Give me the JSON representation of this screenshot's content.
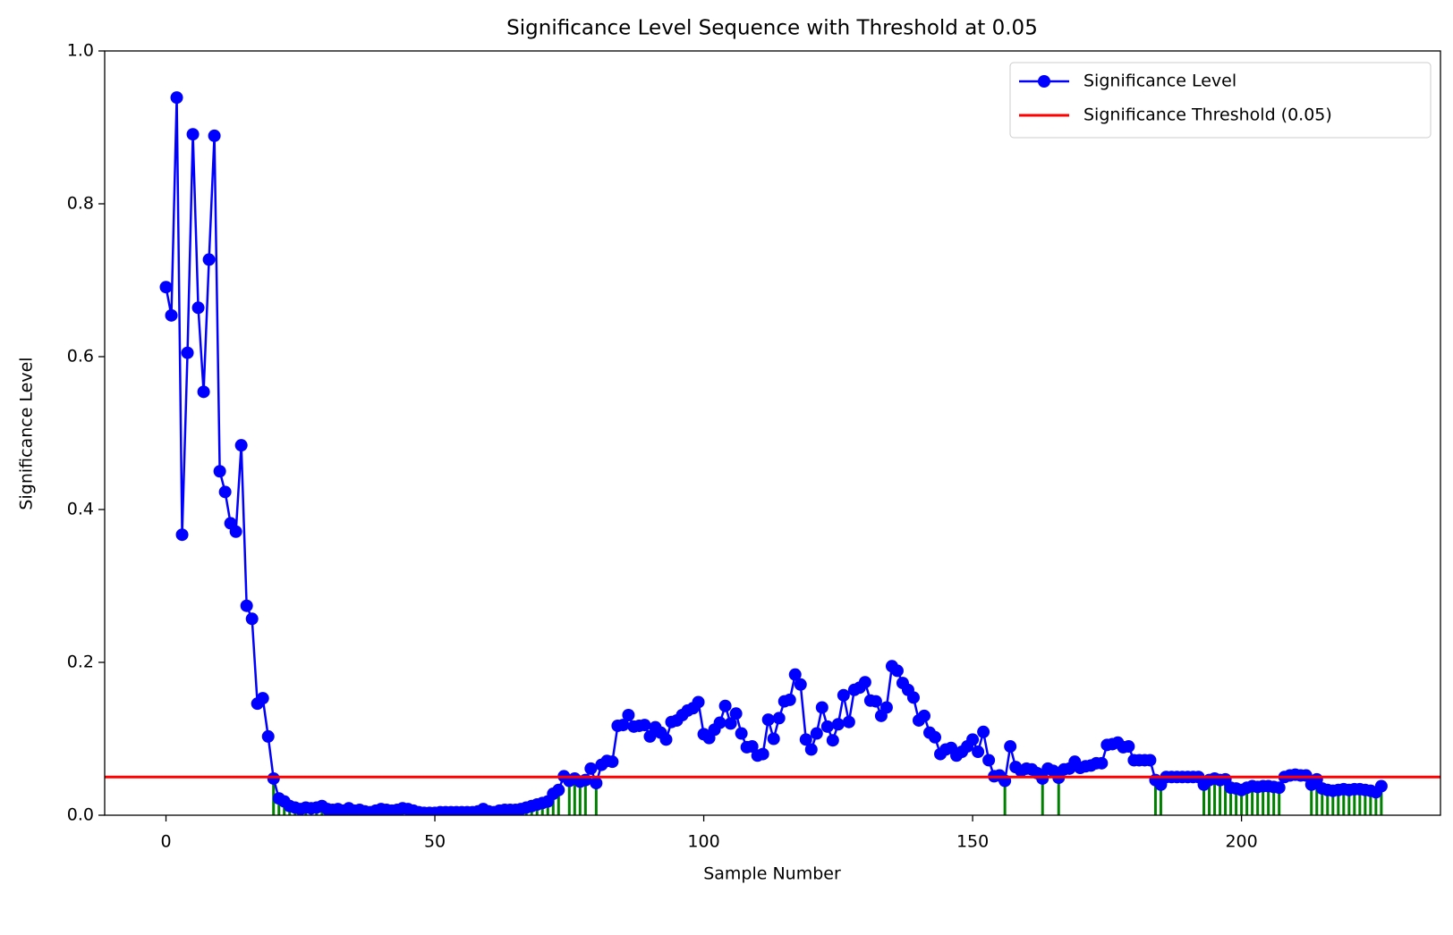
{
  "chart_data": {
    "type": "line",
    "title": "Significance Level Sequence with Threshold at 0.05",
    "xlabel": "Sample Number",
    "ylabel": "Significance Level",
    "x": [
      0,
      1,
      2,
      3,
      4,
      5,
      6,
      7,
      8,
      9,
      10,
      11,
      12,
      13,
      14,
      15,
      16,
      17,
      18,
      19,
      20,
      21,
      22,
      23,
      24,
      25,
      26,
      27,
      28,
      29,
      30,
      31,
      32,
      33,
      34,
      35,
      36,
      37,
      38,
      39,
      40,
      41,
      42,
      43,
      44,
      45,
      46,
      47,
      48,
      49,
      50,
      51,
      52,
      53,
      54,
      55,
      56,
      57,
      58,
      59,
      60,
      61,
      62,
      63,
      64,
      65,
      66,
      67,
      68,
      69,
      70,
      71,
      72,
      73,
      74,
      75,
      76,
      77,
      78,
      79,
      80,
      81,
      82,
      83,
      84,
      85,
      86,
      87,
      88,
      89,
      90,
      91,
      92,
      93,
      94,
      95,
      96,
      97,
      98,
      99,
      100,
      101,
      102,
      103,
      104,
      105,
      106,
      107,
      108,
      109,
      110,
      111,
      112,
      113,
      114,
      115,
      116,
      117,
      118,
      119,
      120,
      121,
      122,
      123,
      124,
      125,
      126,
      127,
      128,
      129,
      130,
      131,
      132,
      133,
      134,
      135,
      136,
      137,
      138,
      139,
      140,
      141,
      142,
      143,
      144,
      145,
      146,
      147,
      148,
      149,
      150,
      151,
      152,
      153,
      154,
      155,
      156,
      157,
      158,
      159,
      160,
      161,
      162,
      163,
      164,
      165,
      166,
      167,
      168,
      169,
      170,
      171,
      172,
      173,
      174,
      175,
      176,
      177,
      178,
      179,
      180,
      181,
      182,
      183,
      184,
      185,
      186,
      187,
      188,
      189,
      190,
      191,
      192,
      193,
      194,
      195,
      196,
      197,
      198,
      199,
      200,
      201,
      202,
      203,
      204,
      205,
      206,
      207,
      208,
      209,
      210,
      211,
      212,
      213,
      214,
      215,
      216,
      217,
      218,
      219,
      220,
      221,
      222,
      223,
      224,
      225,
      226
    ],
    "series": [
      {
        "name": "Significance Level",
        "color": "#0000ff",
        "values": [
          0.691,
          0.654,
          0.939,
          0.367,
          0.605,
          0.891,
          0.664,
          0.554,
          0.727,
          0.889,
          0.45,
          0.423,
          0.382,
          0.371,
          0.484,
          0.274,
          0.257,
          0.146,
          0.153,
          0.103,
          0.048,
          0.022,
          0.018,
          0.012,
          0.01,
          0.008,
          0.01,
          0.009,
          0.01,
          0.012,
          0.008,
          0.007,
          0.008,
          0.006,
          0.009,
          0.006,
          0.007,
          0.005,
          0.004,
          0.006,
          0.008,
          0.007,
          0.006,
          0.007,
          0.009,
          0.008,
          0.006,
          0.004,
          0.003,
          0.003,
          0.003,
          0.004,
          0.004,
          0.004,
          0.004,
          0.004,
          0.004,
          0.004,
          0.005,
          0.008,
          0.005,
          0.004,
          0.006,
          0.007,
          0.007,
          0.007,
          0.008,
          0.01,
          0.012,
          0.014,
          0.016,
          0.018,
          0.028,
          0.033,
          0.051,
          0.045,
          0.048,
          0.044,
          0.046,
          0.061,
          0.042,
          0.066,
          0.071,
          0.07,
          0.117,
          0.118,
          0.131,
          0.116,
          0.117,
          0.118,
          0.103,
          0.115,
          0.108,
          0.099,
          0.122,
          0.124,
          0.131,
          0.137,
          0.14,
          0.148,
          0.106,
          0.101,
          0.112,
          0.121,
          0.143,
          0.12,
          0.133,
          0.107,
          0.089,
          0.09,
          0.078,
          0.08,
          0.125,
          0.1,
          0.127,
          0.149,
          0.151,
          0.184,
          0.171,
          0.099,
          0.086,
          0.107,
          0.141,
          0.116,
          0.098,
          0.119,
          0.157,
          0.122,
          0.164,
          0.167,
          0.174,
          0.15,
          0.149,
          0.13,
          0.141,
          0.195,
          0.189,
          0.173,
          0.164,
          0.154,
          0.124,
          0.13,
          0.108,
          0.102,
          0.08,
          0.086,
          0.088,
          0.078,
          0.083,
          0.09,
          0.099,
          0.083,
          0.109,
          0.072,
          0.051,
          0.052,
          0.045,
          0.09,
          0.063,
          0.058,
          0.061,
          0.06,
          0.055,
          0.048,
          0.061,
          0.058,
          0.049,
          0.06,
          0.061,
          0.07,
          0.062,
          0.064,
          0.065,
          0.068,
          0.068,
          0.092,
          0.093,
          0.095,
          0.089,
          0.09,
          0.072,
          0.072,
          0.072,
          0.072,
          0.046,
          0.04,
          0.05,
          0.05,
          0.05,
          0.05,
          0.05,
          0.05,
          0.05,
          0.04,
          0.046,
          0.048,
          0.046,
          0.047,
          0.036,
          0.035,
          0.033,
          0.036,
          0.038,
          0.037,
          0.038,
          0.038,
          0.037,
          0.036,
          0.05,
          0.052,
          0.053,
          0.052,
          0.052,
          0.04,
          0.047,
          0.035,
          0.033,
          0.032,
          0.033,
          0.034,
          0.033,
          0.034,
          0.034,
          0.033,
          0.032,
          0.03,
          0.038
        ]
      }
    ],
    "threshold": {
      "name": "Significance Threshold (0.05)",
      "value": 0.05,
      "color": "#ff0000"
    },
    "stem_color": "#008000",
    "xlim": [
      -11.4,
      237
    ],
    "ylim": [
      0,
      1
    ],
    "xticks": [
      0,
      50,
      100,
      150,
      200
    ],
    "yticks": [
      {
        "value": 0,
        "label": "0.0"
      },
      0.2,
      0.4,
      0.6,
      0.8,
      {
        "value": 1,
        "label": "1.0"
      }
    ],
    "legend": "upper right"
  }
}
